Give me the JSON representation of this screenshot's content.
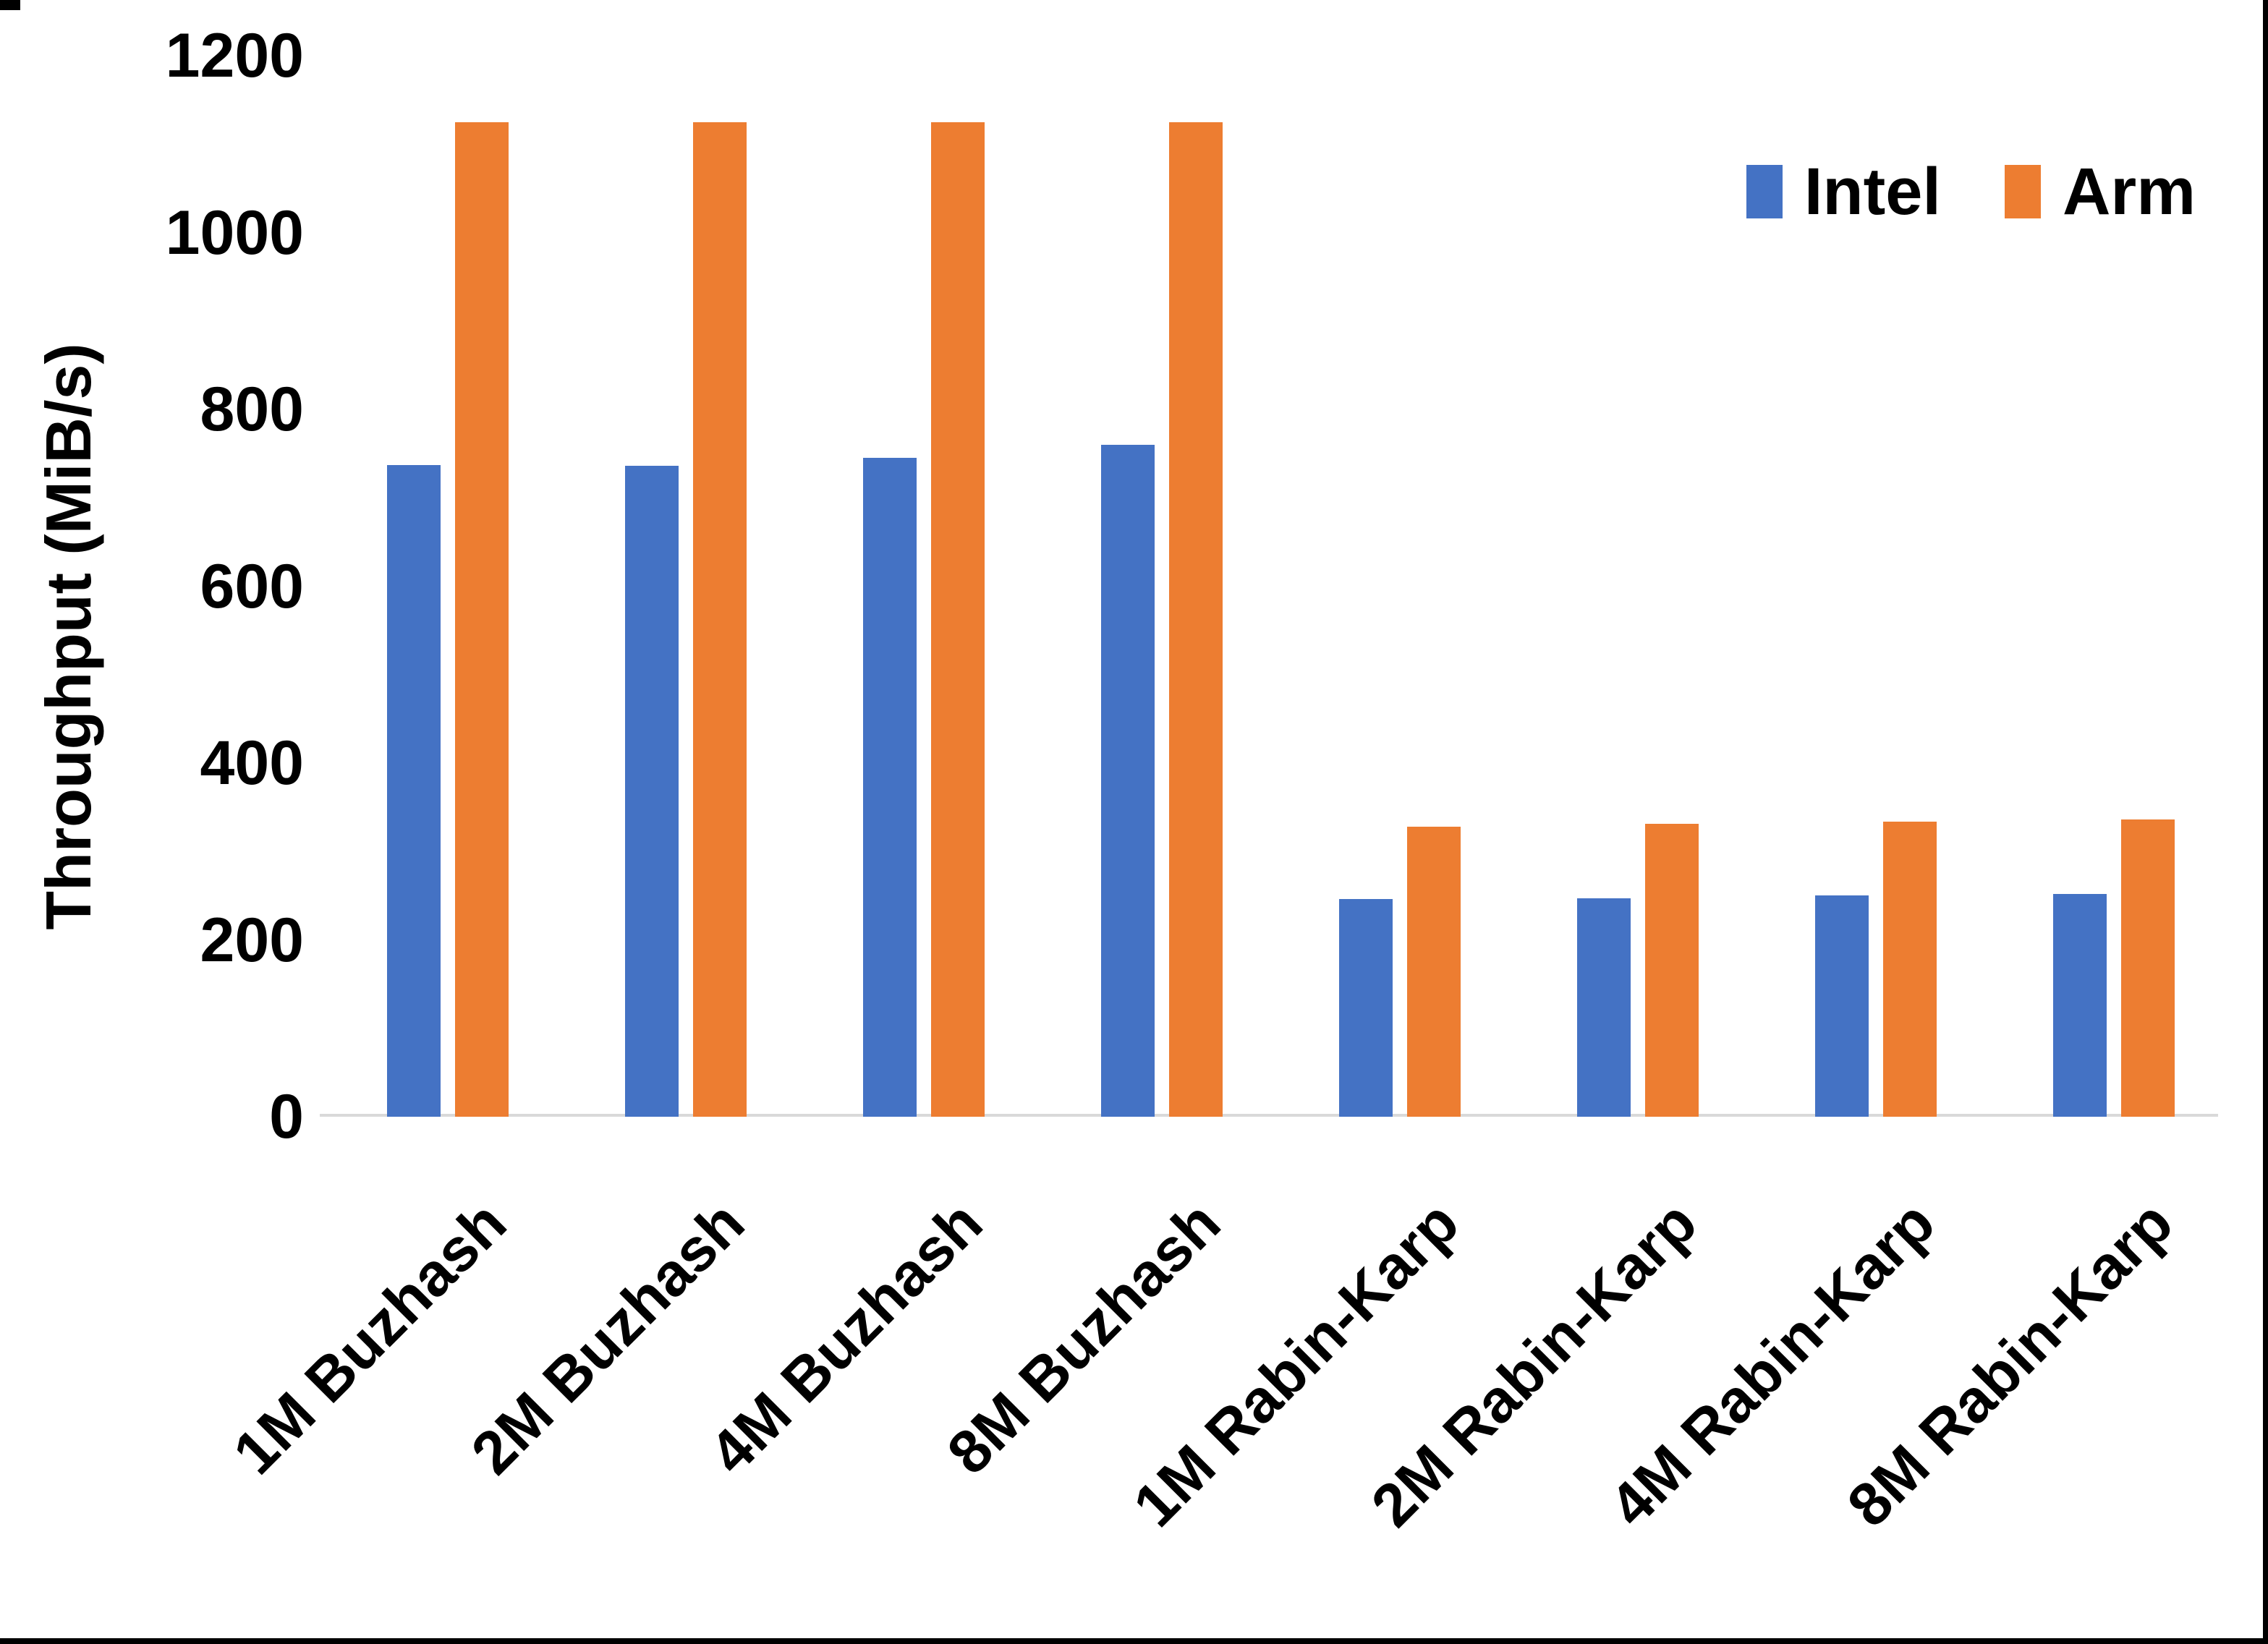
{
  "chart_data": {
    "type": "bar",
    "title": "",
    "categories": [
      "1M Buzhash",
      "2M Buzhash",
      "4M Buzhash",
      "8M Buzhash",
      "1M Rabin-Karp",
      "2M Rabin-Karp",
      "4M Rabin-Karp",
      "8M Rabin-Karp"
    ],
    "series": [
      {
        "name": "Intel",
        "color": "#4472C4",
        "values": [
          737,
          736,
          745,
          760,
          246,
          247,
          250,
          252
        ]
      },
      {
        "name": "Arm",
        "color": "#ED7D31",
        "values": [
          1125,
          1125,
          1125,
          1125,
          328,
          331,
          334,
          336
        ]
      }
    ],
    "xlabel": "",
    "ylabel": "Throughput (MiB/s)",
    "ylim": [
      0,
      1200
    ],
    "ytick_step": 200,
    "ytick_labels": [
      "0",
      "200",
      "400",
      "600",
      "800",
      "1000",
      "1200"
    ],
    "grid": false,
    "legend_position": "top-right",
    "axis_line_color": "#d9d9d9",
    "background_color": "#ffffff"
  }
}
